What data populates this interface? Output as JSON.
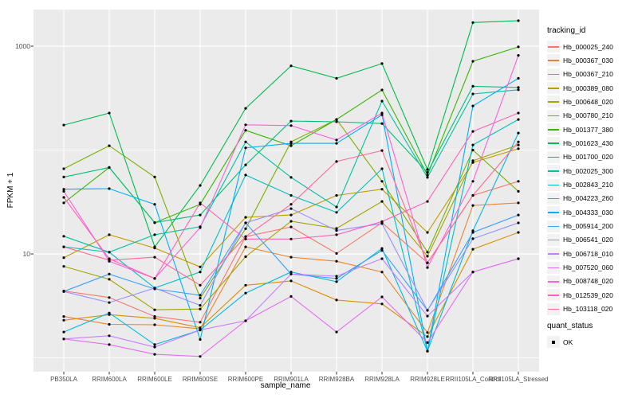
{
  "figure": {
    "panel_bg": "#EBEBEB",
    "grid_color": "#FFFFFF",
    "tick_color": "#333333",
    "point_color": "#000000",
    "tick_text_color": "#4D4D4D"
  },
  "ui": {
    "y_axis_title": "FPKM + 1",
    "x_axis_title": "sample_name",
    "legend_title": "tracking_id",
    "quant_title": "quant_status",
    "quant_ok_label": "OK"
  },
  "chart_data": {
    "type": "line",
    "title": "",
    "xlabel": "sample_name",
    "ylabel": "FPKM + 1",
    "y_scale": "log10",
    "y_ticks": [
      10,
      1000
    ],
    "y_minor_gridlines": [
      1,
      100
    ],
    "ylim": [
      0.73,
      2250
    ],
    "grid": true,
    "legend_position": "right",
    "legend_title": "tracking_id",
    "quant_status": {
      "title": "quant_status",
      "items": [
        "OK"
      ]
    },
    "categories": [
      "PB350LA",
      "RRIM600LA",
      "RRIM600LE",
      "RRIM600SE",
      "RRIM600PE",
      "RRIM901LA",
      "RRIM928BA",
      "RRIM928LA",
      "RRIM928LE",
      "RRII105LA_Control",
      "RRII105LA_Stressed"
    ],
    "series": [
      {
        "name": "Hb_000025_240",
        "color": "#F8766D",
        "values": [
          4.4,
          3.8,
          2.5,
          2.2,
          14.7,
          18.2,
          10.1,
          20,
          8.2,
          36.6,
          50
        ]
      },
      {
        "name": "Hb_000367_030",
        "color": "#EA8331",
        "values": [
          2.5,
          2.1,
          2.08,
          1.9,
          11.7,
          9.3,
          8.5,
          6.7,
          1.75,
          29.3,
          31
        ]
      },
      {
        "name": "Hb_000367_210",
        "color": "#D89000",
        "values": [
          2.3,
          2.6,
          2.4,
          1.95,
          5.0,
          5.5,
          3.6,
          3.3,
          1.6,
          11.1,
          16.1
        ]
      },
      {
        "name": "Hb_000389_080",
        "color": "#C09B00",
        "values": [
          9.2,
          15.3,
          11.4,
          7.5,
          22.5,
          23.7,
          36.6,
          42,
          16.1,
          76,
          103
        ]
      },
      {
        "name": "Hb_000648_020",
        "color": "#A3A500",
        "values": [
          7.6,
          5.7,
          2.9,
          2.95,
          9.4,
          20.6,
          17.6,
          32,
          9.5,
          79,
          112
        ]
      },
      {
        "name": "Hb_000780_210",
        "color": "#7CAE00",
        "values": [
          66,
          110,
          55,
          3.75,
          17.5,
          120,
          197,
          50,
          10.4,
          100,
          40
        ]
      },
      {
        "name": "Hb_001377_380",
        "color": "#39B600",
        "values": [
          31,
          68,
          20,
          30,
          155,
          110,
          197,
          379,
          57.5,
          715,
          985
        ]
      },
      {
        "name": "Hb_001623_430",
        "color": "#00BB4E",
        "values": [
          174,
          227,
          11.7,
          45.6,
          252,
          647,
          490,
          680,
          65,
          1690,
          1760
        ]
      },
      {
        "name": "Hb_001700_020",
        "color": "#00BF7D",
        "values": [
          55,
          68,
          20,
          23.7,
          72,
          190,
          187,
          180,
          61,
          411,
          400
        ]
      },
      {
        "name": "Hb_002025_300",
        "color": "#00C1A3",
        "values": [
          14.8,
          10.4,
          15.3,
          18.3,
          120,
          54.5,
          28.3,
          296,
          54.5,
          347,
          380
        ]
      },
      {
        "name": "Hb_002843_210",
        "color": "#00BFC4",
        "values": [
          11.7,
          10.4,
          4.7,
          6.7,
          57.5,
          36.6,
          25.1,
          66,
          1.16,
          112,
          197
        ]
      },
      {
        "name": "Hb_004223_260",
        "color": "#00BAE0",
        "values": [
          1.77,
          2.7,
          1.34,
          1.85,
          4.2,
          6.7,
          5.4,
          11.3,
          1.16,
          16.7,
          146
        ]
      },
      {
        "name": "Hb_004333_030",
        "color": "#00B0F6",
        "values": [
          42,
          42.5,
          30,
          1.5,
          105,
          116,
          116,
          218,
          1.16,
          266,
          490
        ]
      },
      {
        "name": "Hb_005914_200",
        "color": "#35A2FF",
        "values": [
          4.35,
          6.4,
          4.6,
          4.0,
          19.9,
          6.4,
          5.8,
          10.8,
          2.86,
          16.1,
          23.7
        ]
      },
      {
        "name": "Hb_006541_020",
        "color": "#9590FF",
        "values": [
          4.35,
          3.4,
          4.7,
          3.2,
          19.9,
          27.3,
          16.8,
          19.6,
          2.86,
          14.0,
          19.9
        ]
      },
      {
        "name": "Hb_006718_010",
        "color": "#C77CFF",
        "values": [
          1.52,
          1.63,
          1.27,
          1.85,
          2.27,
          6.4,
          6.1,
          9.0,
          2.52,
          6.7,
          9.0
        ]
      },
      {
        "name": "Hb_007520_060",
        "color": "#E76BF3",
        "values": [
          1.52,
          1.34,
          1.08,
          1.03,
          2.27,
          3.9,
          1.77,
          3.86,
          1.4,
          6.7,
          9.0
        ]
      },
      {
        "name": "Hb_008748_020",
        "color": "#FA62DB",
        "values": [
          40,
          8.5,
          5.8,
          17.9,
          175,
          172,
          125,
          227,
          7.4,
          50,
          815
        ]
      },
      {
        "name": "Hb_012539_020",
        "color": "#FF62BC",
        "values": [
          35,
          9.0,
          5.8,
          31,
          13.9,
          13.9,
          15.3,
          20.5,
          32,
          151,
          227
        ]
      },
      {
        "name": "Hb_103118_020",
        "color": "#FF6A98",
        "values": [
          11.7,
          8.7,
          9.3,
          5.0,
          14.7,
          30,
          77.5,
          99,
          8.2,
          36.6,
          120
        ]
      }
    ]
  }
}
